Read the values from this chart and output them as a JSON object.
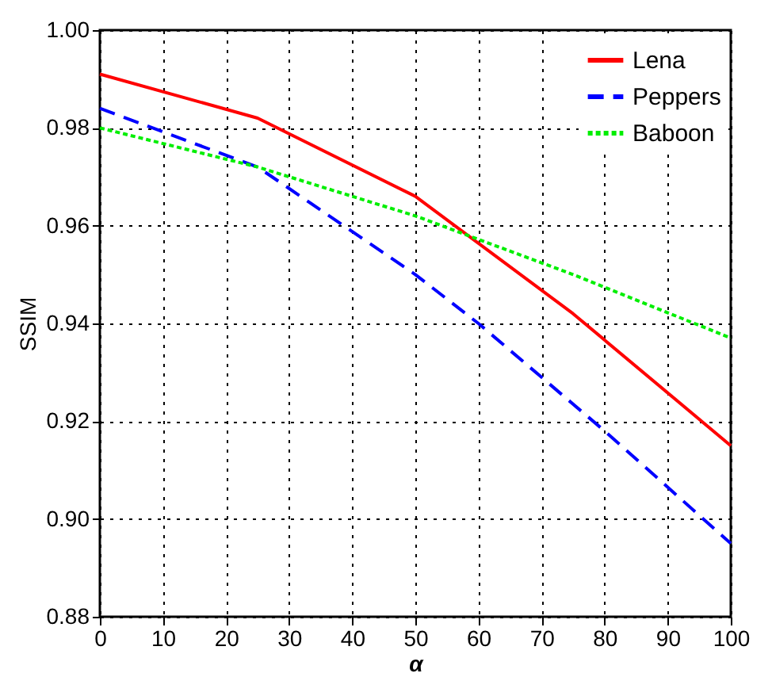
{
  "chart_data": {
    "type": "line",
    "xlabel": "α",
    "ylabel": "SSIM",
    "x": [
      0,
      25,
      50,
      75,
      100
    ],
    "series": [
      {
        "name": "Lena",
        "color": "#ff0000",
        "line_style": "solid",
        "values": [
          0.991,
          0.982,
          0.966,
          0.942,
          0.915
        ]
      },
      {
        "name": "Peppers",
        "color": "#0000ff",
        "line_style": "dashed",
        "x": [
          0,
          25,
          50,
          60,
          80,
          100
        ],
        "values": [
          0.984,
          0.972,
          0.95,
          0.94,
          0.918,
          0.895
        ]
      },
      {
        "name": "Baboon",
        "color": "#00ee00",
        "line_style": "dotted",
        "values": [
          0.98,
          0.972,
          0.962,
          0.95,
          0.937
        ]
      }
    ],
    "xlim": [
      0,
      100
    ],
    "xticks": [
      0,
      10,
      20,
      30,
      40,
      50,
      60,
      70,
      80,
      90,
      100
    ],
    "ylim": [
      0.88,
      1.0
    ],
    "yticks": [
      {
        "value": 0.88,
        "label": "0.88"
      },
      {
        "value": 0.9,
        "label": "0.90"
      },
      {
        "value": 0.92,
        "label": "0.92"
      },
      {
        "value": 0.94,
        "label": "0.94"
      },
      {
        "value": 0.96,
        "label": "0.96"
      },
      {
        "value": 0.98,
        "label": "0.98"
      },
      {
        "value": 1.0,
        "label": "1.00"
      }
    ],
    "grid": true,
    "legend": "top right",
    "marker": "none"
  }
}
